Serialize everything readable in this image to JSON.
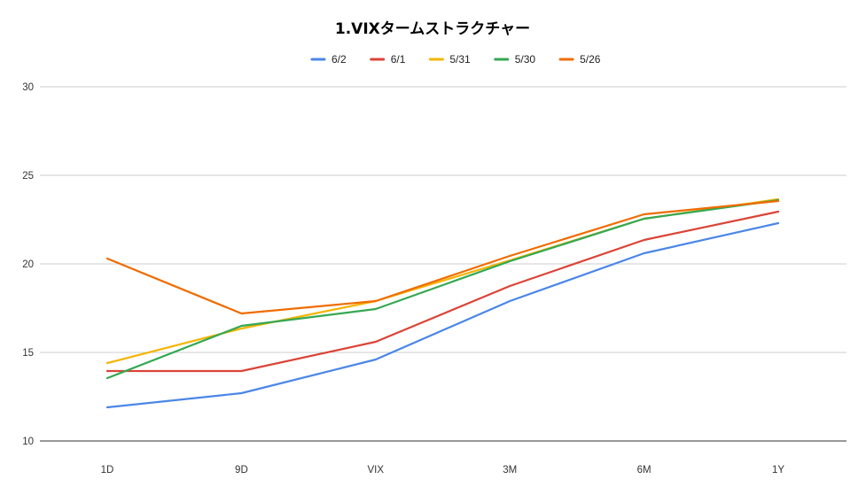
{
  "chart_data": {
    "type": "line",
    "title": "1.VIXタームストラクチャー",
    "xlabel": "",
    "ylabel": "",
    "categories": [
      "1D",
      "9D",
      "VIX",
      "3M",
      "6M",
      "1Y"
    ],
    "ylim": [
      10,
      30
    ],
    "yticks": [
      10,
      15,
      20,
      25,
      30
    ],
    "grid": true,
    "legend_position": "top",
    "series": [
      {
        "name": "6/2",
        "color": "#4a86e8",
        "values": [
          11.9,
          12.7,
          14.6,
          17.9,
          20.6,
          22.3
        ]
      },
      {
        "name": "6/1",
        "color": "#db4437",
        "values": [
          13.95,
          13.95,
          15.6,
          18.75,
          21.35,
          22.95
        ]
      },
      {
        "name": "5/31",
        "color": "#f4b400",
        "values": [
          14.4,
          16.35,
          17.9,
          20.2,
          22.55,
          23.65
        ]
      },
      {
        "name": "5/30",
        "color": "#34a853",
        "values": [
          13.55,
          16.5,
          17.45,
          20.15,
          22.55,
          23.6
        ]
      },
      {
        "name": "5/26",
        "color": "#ef6c00",
        "values": [
          20.3,
          17.2,
          17.9,
          20.45,
          22.8,
          23.55
        ]
      }
    ]
  }
}
